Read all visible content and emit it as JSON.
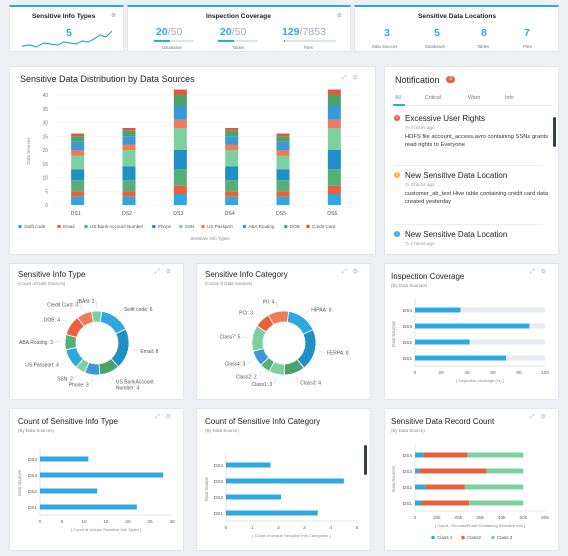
{
  "kpis": {
    "info_types": {
      "title": "Sensitive Info Types",
      "value": "5"
    },
    "inspection": {
      "title": "Inspection Coverage",
      "items": [
        {
          "value": "20",
          "total": "/50",
          "label": "Databases",
          "fraction": 0.4
        },
        {
          "value": "20",
          "total": "/50",
          "label": "Tables",
          "fraction": 0.4
        },
        {
          "value": "129",
          "total": "/7853",
          "label": "Files",
          "fraction": 0.0164
        }
      ]
    },
    "locations": {
      "title": "Sensitive Data Locations",
      "items": [
        {
          "value": "3",
          "label": "Data Sources"
        },
        {
          "value": "5",
          "label": "Databases"
        },
        {
          "value": "8",
          "label": "Tables"
        },
        {
          "value": "7",
          "label": "Files"
        }
      ]
    }
  },
  "notification": {
    "title": "Notification",
    "count": "3",
    "tabs": [
      "All",
      "Critical",
      "Warn",
      "Info"
    ],
    "items": [
      {
        "level": "critical",
        "color": "#e8603c",
        "icon": "!",
        "title": "Excessive User Rights",
        "time": "3 hours ago",
        "message": "HDFS file account_access.avro containing SSNs grants read rights to Everyone"
      },
      {
        "level": "warn",
        "color": "#f5b335",
        "icon": "!",
        "title": "New Sensitive Data Location",
        "time": "3 hours ago",
        "message": "customer_ab_test Hive table containing credit card data created yesterday"
      },
      {
        "level": "info",
        "color": "#2fa8e0",
        "icon": "i",
        "title": "New Sensitive Data Location",
        "time": "3 hours ago",
        "message": ""
      }
    ]
  },
  "colors": {
    "swift": "#2fa8e0",
    "email": "#e8603c",
    "bank": "#55b078",
    "phone": "#1f8fc6",
    "ssn": "#7fd0a0",
    "passport": "#f07b5a",
    "aba": "#3a9ad9",
    "dob": "#48a46a",
    "credit": "#e05a3a",
    "accent": "#2fa8e0"
  },
  "charts": {
    "distribution": {
      "title": "Sensitive Data Distribution by Data Sources",
      "chart_data": {
        "type": "bar",
        "categories": [
          "DS1",
          "DS2",
          "DS3",
          "DS4",
          "DS5",
          "DS6"
        ],
        "ylabel": "Data Sources",
        "xlabel": "Sensitive Info Types",
        "ylim": [
          0,
          40
        ],
        "yticks": [
          0,
          5,
          10,
          15,
          20,
          25,
          30,
          35,
          40
        ],
        "series": [
          {
            "name": "Swift code",
            "values": [
              3,
              3,
              4,
              3,
              3,
              4
            ]
          },
          {
            "name": "Email",
            "values": [
              2,
              2,
              3,
              2,
              2,
              3
            ]
          },
          {
            "name": "US Bank Account Number",
            "values": [
              4,
              4,
              6,
              4,
              4,
              6
            ]
          },
          {
            "name": "Phone",
            "values": [
              4,
              5,
              7,
              5,
              4,
              7
            ]
          },
          {
            "name": "SSN",
            "values": [
              5,
              6,
              8,
              6,
              5,
              8
            ]
          },
          {
            "name": "US Passport",
            "values": [
              2,
              2,
              3,
              2,
              2,
              3
            ]
          },
          {
            "name": "ABA Routing",
            "values": [
              3,
              3,
              5,
              3,
              3,
              5
            ]
          },
          {
            "name": "DOB",
            "values": [
              2,
              2,
              4,
              2,
              2,
              4
            ]
          },
          {
            "name": "Credit Card",
            "values": [
              1,
              1,
              2,
              1,
              1,
              2
            ]
          }
        ]
      }
    },
    "info_type_donut": {
      "title": "Sensitive Info Type",
      "subtitle": "(Count of Data Sources)",
      "chart_data": {
        "type": "pie",
        "labels": [
          "Swift code: 6",
          "Email: 8",
          "US BankAccount Number: 4",
          "Phone: 3",
          "SSN: 2",
          "US Passport: 4",
          "ABA Routing: 3",
          "DOB: 4",
          "Credit Card: 3",
          "IBAN: 2"
        ],
        "values": [
          6,
          8,
          4,
          3,
          2,
          4,
          3,
          4,
          3,
          2
        ]
      }
    },
    "info_category_donut": {
      "title": "Sensitive Info Category",
      "subtitle": "(Count of Data Sources)",
      "chart_data": {
        "type": "pie",
        "labels": [
          "HIPAA: 6",
          "FERPA: 8",
          "Class3: 4",
          "Class1: 3",
          "Class2: 2",
          "Class4: 3",
          "Class7: 5",
          "PCI: 3",
          "PII: 4"
        ],
        "values": [
          6,
          8,
          4,
          3,
          2,
          3,
          5,
          3,
          4
        ]
      }
    },
    "inspection_coverage": {
      "title": "Inspection Coverage",
      "subtitle": "(By Data Sources)",
      "chart_data": {
        "type": "bar",
        "orientation": "horizontal",
        "categories": [
          "DS4",
          "DS3",
          "DS2",
          "DS1"
        ],
        "values": [
          35,
          88,
          42,
          70
        ],
        "xlabel": "Inspection coverage (%)",
        "ylabel": "Data Sources",
        "xlim": [
          0,
          100
        ],
        "xticks": [
          0,
          20,
          40,
          60,
          80,
          100
        ]
      }
    },
    "count_info_type": {
      "title": "Count of Sensitive Info Type",
      "subtitle": "(By Data Sources)",
      "chart_data": {
        "type": "bar",
        "orientation": "horizontal",
        "categories": [
          "DS4",
          "DS3",
          "DS2",
          "DS1"
        ],
        "values": [
          11,
          28,
          13,
          22
        ],
        "xlabel": "Count of Unique Sensitive Info Types",
        "ylabel": "Data Sources",
        "xlim": [
          0,
          30
        ],
        "xticks": [
          0,
          5,
          10,
          15,
          20,
          25,
          30
        ]
      }
    },
    "count_info_category": {
      "title": "Count of Sensitive Info Category",
      "subtitle": "(By Data Source)",
      "chart_data": {
        "type": "bar",
        "orientation": "horizontal",
        "categories": [
          "DS4",
          "DS3",
          "DS2",
          "DS1"
        ],
        "values": [
          1.7,
          4.5,
          2.1,
          3.5
        ],
        "xlabel": "Count of unique Sensitive Info Categories",
        "ylabel": "Data Source",
        "xlim": [
          0,
          5
        ],
        "xticks": [
          0,
          1,
          2,
          3,
          4,
          5
        ]
      }
    },
    "record_count": {
      "title": "Sensitive Data Record Count",
      "subtitle": "(By Data Source)",
      "chart_data": {
        "type": "bar",
        "orientation": "horizontal",
        "stacked": true,
        "categories": [
          "DS4",
          "DS3",
          "DS2",
          "DS1"
        ],
        "xlabel": "Count - Records/Rows Containing Sensitive Info",
        "ylabel": "Data Sources",
        "xlim": [
          0,
          60000
        ],
        "xticks": [
          "0",
          "10k",
          "20k",
          "30k",
          "40k",
          "50k",
          "60k"
        ],
        "series": [
          {
            "name": "Class 1",
            "values": [
              4000,
              2000,
              5000,
              3000
            ]
          },
          {
            "name": "Class2",
            "values": [
              20000,
              31000,
              18000,
              22000
            ]
          },
          {
            "name": "Class 3",
            "values": [
              26000,
              17000,
              27000,
              25000
            ]
          }
        ]
      }
    }
  }
}
